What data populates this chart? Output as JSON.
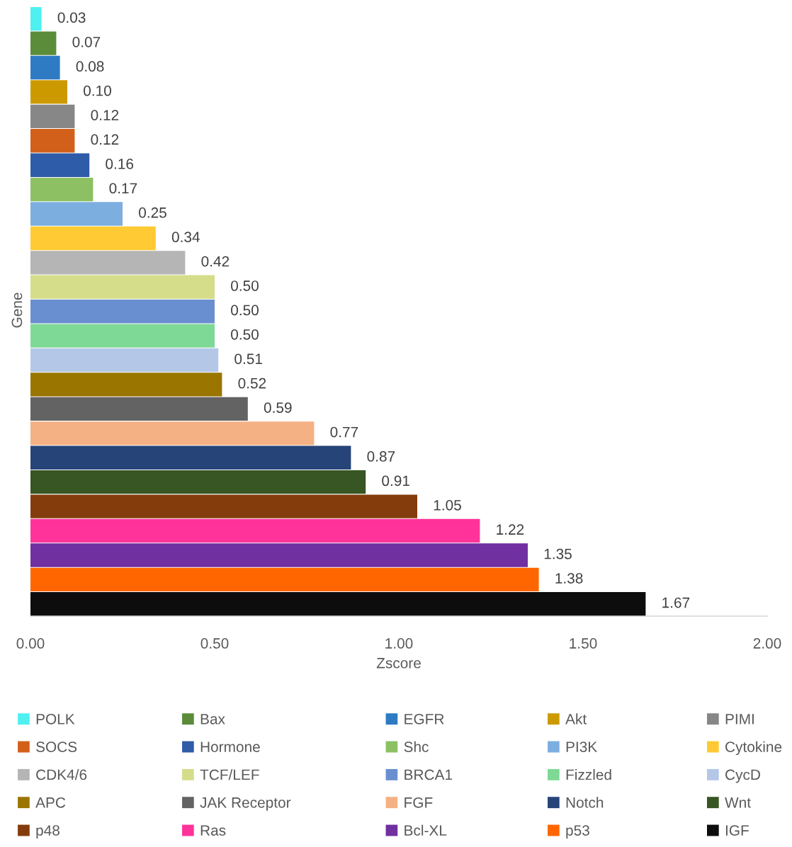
{
  "chart_data": {
    "type": "bar",
    "orientation": "horizontal",
    "stacked": true,
    "xlabel": "Zscore",
    "ylabel": "Gene",
    "categories": [
      null,
      null,
      null,
      null,
      null,
      null,
      null,
      null,
      null,
      null,
      null,
      null,
      null,
      null,
      null,
      null,
      null,
      null,
      null,
      null,
      null,
      null,
      null,
      null,
      null
    ],
    "xlim": [
      0,
      2
    ],
    "xticks": [
      {
        "value": 0,
        "label": "0.00"
      },
      {
        "value": 0.5,
        "label": "0.50"
      },
      {
        "value": 1,
        "label": "1.00"
      },
      {
        "value": 1.5,
        "label": "1.50"
      },
      {
        "value": 2,
        "label": "2.00"
      }
    ],
    "grid": false,
    "legend": "bottom",
    "totals": [
      "0.03",
      "0.07",
      "0.08",
      "0.10",
      "0.12",
      "0.12",
      "0.16",
      "0.17",
      "0.25",
      "0.34",
      "0.42",
      "0.50",
      "0.50",
      "0.50",
      "0.51",
      "0.52",
      "0.59",
      "0.77",
      "0.87",
      "0.91",
      "1.05",
      "1.22",
      "1.35",
      "1.38",
      "1.67"
    ],
    "series": [
      {
        "name": "POLK",
        "color": "#4ff0f0",
        "values": [
          0.03,
          0,
          0,
          0,
          0,
          0,
          0,
          0,
          0,
          0,
          0,
          0,
          0,
          0,
          0,
          0,
          0,
          0,
          0,
          0,
          0,
          0,
          0,
          0,
          0
        ]
      },
      {
        "name": "Bax",
        "color": "#5b8c3a",
        "values": [
          0,
          0.07,
          0,
          0,
          0,
          0,
          0,
          0,
          0,
          0,
          0,
          0,
          0,
          0,
          0,
          0,
          0,
          0,
          0,
          0,
          0,
          0,
          0,
          0,
          0
        ]
      },
      {
        "name": "EGFR",
        "color": "#2e7bc4",
        "values": [
          0,
          0,
          0.08,
          0,
          0,
          0,
          0,
          0,
          0,
          0,
          0,
          0,
          0,
          0,
          0,
          0,
          0,
          0,
          0,
          0,
          0,
          0,
          0,
          0,
          0
        ]
      },
      {
        "name": "Akt",
        "color": "#cc9a00",
        "values": [
          0,
          0,
          0,
          0.1,
          0,
          0,
          0,
          0,
          0,
          0,
          0,
          0,
          0,
          0,
          0,
          0,
          0,
          0,
          0,
          0,
          0,
          0,
          0,
          0,
          0
        ]
      },
      {
        "name": "PIMI",
        "color": "#878787",
        "values": [
          0,
          0,
          0,
          0,
          0.12,
          0,
          0,
          0,
          0,
          0,
          0,
          0,
          0,
          0,
          0,
          0,
          0,
          0,
          0,
          0,
          0,
          0,
          0,
          0,
          0
        ]
      },
      {
        "name": "SOCS",
        "color": "#d2601a",
        "values": [
          0,
          0,
          0,
          0,
          0,
          0.12,
          0,
          0,
          0,
          0,
          0,
          0,
          0,
          0,
          0,
          0,
          0,
          0,
          0,
          0,
          0,
          0,
          0,
          0,
          0
        ]
      },
      {
        "name": "Hormone",
        "color": "#2f5ca8",
        "values": [
          0,
          0,
          0,
          0,
          0,
          0,
          0.16,
          0,
          0,
          0,
          0,
          0,
          0,
          0,
          0,
          0,
          0,
          0,
          0,
          0,
          0,
          0,
          0,
          0,
          0
        ]
      },
      {
        "name": "Shc",
        "color": "#8cc063",
        "values": [
          0,
          0,
          0,
          0,
          0,
          0,
          0,
          0.17,
          0,
          0,
          0,
          0,
          0,
          0,
          0,
          0,
          0,
          0,
          0,
          0,
          0,
          0,
          0,
          0,
          0
        ]
      },
      {
        "name": "PI3K",
        "color": "#7daee0",
        "values": [
          0,
          0,
          0,
          0,
          0,
          0,
          0,
          0,
          0.25,
          0,
          0,
          0,
          0,
          0,
          0,
          0,
          0,
          0,
          0,
          0,
          0,
          0,
          0,
          0,
          0
        ]
      },
      {
        "name": "Cytokine",
        "color": "#ffca33",
        "values": [
          0,
          0,
          0,
          0,
          0,
          0,
          0,
          0,
          0,
          0.34,
          0,
          0,
          0,
          0,
          0,
          0,
          0,
          0,
          0,
          0,
          0,
          0,
          0,
          0,
          0
        ]
      },
      {
        "name": "CDK4/6",
        "color": "#b5b5b5",
        "values": [
          0,
          0,
          0,
          0,
          0,
          0,
          0,
          0,
          0,
          0,
          0.42,
          0,
          0,
          0,
          0,
          0,
          0,
          0,
          0,
          0,
          0,
          0,
          0,
          0,
          0
        ]
      },
      {
        "name": "TCF/LEF",
        "color": "#d5dd8a",
        "values": [
          0,
          0,
          0,
          0,
          0,
          0,
          0,
          0,
          0,
          0,
          0,
          0.5,
          0,
          0,
          0,
          0,
          0,
          0,
          0,
          0,
          0,
          0,
          0,
          0,
          0
        ]
      },
      {
        "name": "BRCA1",
        "color": "#6a8fd0",
        "values": [
          0,
          0,
          0,
          0,
          0,
          0,
          0,
          0,
          0,
          0,
          0,
          0,
          0.5,
          0,
          0,
          0,
          0,
          0,
          0,
          0,
          0,
          0,
          0,
          0,
          0
        ]
      },
      {
        "name": "Fizzled",
        "color": "#7ed996",
        "values": [
          0,
          0,
          0,
          0,
          0,
          0,
          0,
          0,
          0,
          0,
          0,
          0,
          0,
          0.5,
          0,
          0,
          0,
          0,
          0,
          0,
          0,
          0,
          0,
          0,
          0
        ]
      },
      {
        "name": "CycD",
        "color": "#b4c7e7",
        "values": [
          0,
          0,
          0,
          0,
          0,
          0,
          0,
          0,
          0,
          0,
          0,
          0,
          0,
          0,
          0.51,
          0,
          0,
          0,
          0,
          0,
          0,
          0,
          0,
          0,
          0
        ]
      },
      {
        "name": "APC",
        "color": "#9a7500",
        "values": [
          0,
          0,
          0,
          0,
          0,
          0,
          0,
          0,
          0,
          0,
          0,
          0,
          0,
          0,
          0,
          0.52,
          0,
          0,
          0,
          0,
          0,
          0,
          0,
          0,
          0
        ]
      },
      {
        "name": "JAK Receptor",
        "color": "#636363",
        "values": [
          0,
          0,
          0,
          0,
          0,
          0,
          0,
          0,
          0,
          0,
          0,
          0,
          0,
          0,
          0,
          0,
          0.59,
          0,
          0,
          0,
          0,
          0,
          0,
          0,
          0
        ]
      },
      {
        "name": "FGF",
        "color": "#f4b183",
        "values": [
          0,
          0,
          0,
          0,
          0,
          0,
          0,
          0,
          0,
          0,
          0,
          0,
          0,
          0,
          0,
          0,
          0,
          0.77,
          0,
          0,
          0,
          0,
          0,
          0,
          0
        ]
      },
      {
        "name": "Notch",
        "color": "#264478",
        "values": [
          0,
          0,
          0,
          0,
          0,
          0,
          0,
          0,
          0,
          0,
          0,
          0,
          0,
          0,
          0,
          0,
          0,
          0,
          0.87,
          0,
          0,
          0,
          0,
          0,
          0
        ]
      },
      {
        "name": "Wnt",
        "color": "#375623",
        "values": [
          0,
          0,
          0,
          0,
          0,
          0,
          0,
          0,
          0,
          0,
          0,
          0,
          0,
          0,
          0,
          0,
          0,
          0,
          0,
          0.91,
          0,
          0,
          0,
          0,
          0
        ]
      },
      {
        "name": "p48",
        "color": "#843c0c",
        "values": [
          0,
          0,
          0,
          0,
          0,
          0,
          0,
          0,
          0,
          0,
          0,
          0,
          0,
          0,
          0,
          0,
          0,
          0,
          0,
          0,
          1.05,
          0,
          0,
          0,
          0
        ]
      },
      {
        "name": "Ras",
        "color": "#ff3399",
        "values": [
          0,
          0,
          0,
          0,
          0,
          0,
          0,
          0,
          0,
          0,
          0,
          0,
          0,
          0,
          0,
          0,
          0,
          0,
          0,
          0,
          0,
          1.22,
          0,
          0,
          0
        ]
      },
      {
        "name": "Bcl-XL",
        "color": "#7030a0",
        "values": [
          0,
          0,
          0,
          0,
          0,
          0,
          0,
          0,
          0,
          0,
          0,
          0,
          0,
          0,
          0,
          0,
          0,
          0,
          0,
          0,
          0,
          0,
          1.35,
          0,
          0
        ]
      },
      {
        "name": "p53",
        "color": "#ff6600",
        "values": [
          0,
          0,
          0,
          0,
          0,
          0,
          0,
          0,
          0,
          0,
          0,
          0,
          0,
          0,
          0,
          0,
          0,
          0,
          0,
          0,
          0,
          0,
          0,
          1.38,
          0
        ]
      },
      {
        "name": "IGF",
        "color": "#0d0d0d",
        "values": [
          0,
          0,
          0,
          0,
          0,
          0,
          0,
          0,
          0,
          0,
          0,
          0,
          0,
          0,
          0,
          0,
          0,
          0,
          0,
          0,
          0,
          0,
          0,
          0,
          1.67
        ]
      }
    ]
  }
}
